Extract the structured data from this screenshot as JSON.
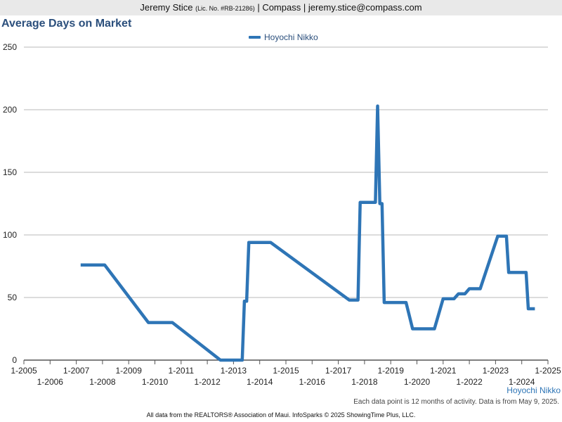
{
  "header": {
    "agent_name": "Jeremy Stice",
    "license": "(Lic. No. #RB-21286)",
    "rest": "| Compass | jeremy.stice@compass.com"
  },
  "colors": {
    "line": "#2e75b6",
    "grid": "#b8b8b8",
    "axis": "#555555",
    "title": "#2b4f7c"
  },
  "chart_data": {
    "type": "line",
    "title": "Average Days on Market",
    "xlabel": "",
    "ylabel": "",
    "ylim": [
      0,
      250
    ],
    "y_ticks": [
      0,
      50,
      100,
      150,
      200,
      250
    ],
    "xlim": [
      "2005-01",
      "2025-01"
    ],
    "x_ticks": [
      "1-2005",
      "1-2006",
      "1-2007",
      "1-2008",
      "1-2009",
      "1-2010",
      "1-2011",
      "1-2012",
      "1-2013",
      "1-2014",
      "1-2015",
      "1-2016",
      "1-2017",
      "1-2018",
      "1-2019",
      "1-2020",
      "1-2021",
      "1-2022",
      "1-2023",
      "1-2024",
      "1-2025"
    ],
    "grid": true,
    "legend_position": "top-center",
    "series": [
      {
        "name": "Hoyochi Nikko",
        "points": [
          [
            "2007-03",
            76
          ],
          [
            "2007-04",
            76
          ],
          [
            "2008-02",
            76
          ],
          [
            "2009-10",
            30
          ],
          [
            "2010-09",
            30
          ],
          [
            "2012-07",
            0
          ],
          [
            "2013-05",
            0
          ],
          [
            "2013-06",
            47
          ],
          [
            "2013-07",
            47
          ],
          [
            "2013-08",
            94
          ],
          [
            "2014-06",
            94
          ],
          [
            "2017-06",
            48
          ],
          [
            "2017-10",
            48
          ],
          [
            "2017-11",
            126
          ],
          [
            "2018-06",
            126
          ],
          [
            "2018-07",
            203
          ],
          [
            "2018-08",
            125
          ],
          [
            "2018-09",
            125
          ],
          [
            "2018-10",
            46
          ],
          [
            "2019-08",
            46
          ],
          [
            "2019-11",
            25
          ],
          [
            "2020-09",
            25
          ],
          [
            "2021-01",
            49
          ],
          [
            "2021-06",
            49
          ],
          [
            "2021-08",
            53
          ],
          [
            "2021-11",
            53
          ],
          [
            "2022-01",
            57
          ],
          [
            "2022-06",
            57
          ],
          [
            "2023-02",
            99
          ],
          [
            "2023-06",
            99
          ],
          [
            "2023-07",
            70
          ],
          [
            "2024-03",
            70
          ],
          [
            "2024-04",
            41
          ],
          [
            "2024-07",
            41
          ]
        ]
      }
    ]
  },
  "footer": {
    "series_label": "Hoyochi Nikko",
    "note": "Each data point is 12 months of activity. Data is from May 9, 2025.",
    "credits": "All data from the REALTORS® Association of Maui. InfoSparks © 2025 ShowingTime Plus, LLC."
  }
}
